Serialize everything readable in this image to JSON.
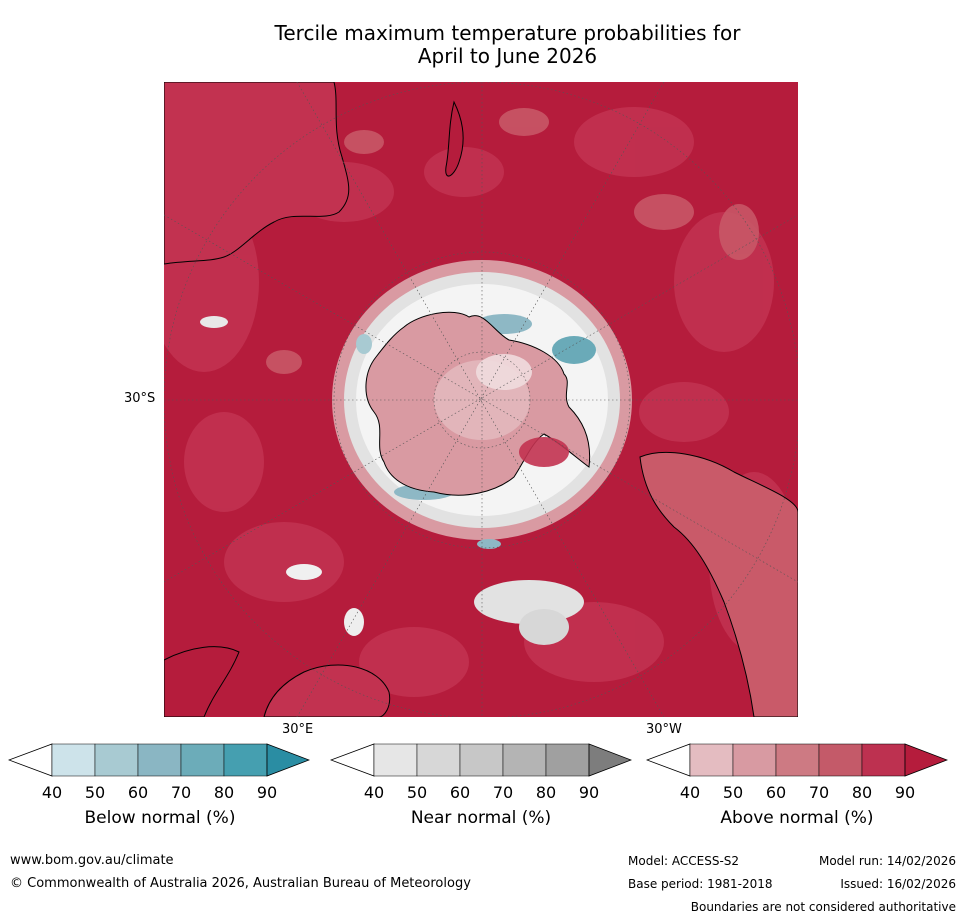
{
  "title_line1": "Tercile maximum temperature probabilities for",
  "title_line2": "April to June 2026",
  "map": {
    "projection": "south-polar-stereographic",
    "lat_label": "30°S",
    "lon_labels": [
      "30°E",
      "30°W"
    ],
    "colors": {
      "ocean_above_90": "#b51c3c",
      "above_80": "#c23250",
      "above_70": "#c95a69",
      "above_60": "#cf7b85",
      "above_50": "#d99aa2",
      "above_40": "#e4bcc1",
      "near": "#e2e2e2",
      "below_60": "#8eb8c5",
      "below_70": "#6aaab8"
    }
  },
  "colorbars": [
    {
      "label": "Below normal (%)",
      "ticks": [
        "40",
        "50",
        "60",
        "70",
        "80",
        "90"
      ],
      "colors": [
        "#ffffff",
        "#cde3ea",
        "#a8cad2",
        "#8ab6c3",
        "#6cacb9",
        "#459fb0",
        "#2a8da3"
      ]
    },
    {
      "label": "Near normal (%)",
      "ticks": [
        "40",
        "50",
        "60",
        "70",
        "80",
        "90"
      ],
      "colors": [
        "#ffffff",
        "#e6e6e6",
        "#d7d7d7",
        "#c7c7c7",
        "#b4b4b4",
        "#a0a0a0",
        "#7d7d7d"
      ]
    },
    {
      "label": "Above normal (%)",
      "ticks": [
        "40",
        "50",
        "60",
        "70",
        "80",
        "90"
      ],
      "colors": [
        "#ffffff",
        "#e4bcc1",
        "#d89aa2",
        "#cd7a83",
        "#c45a69",
        "#bd3150",
        "#b51c3c"
      ]
    }
  ],
  "footer": {
    "url": "www.bom.gov.au/climate",
    "copyright": "© Commonwealth of Australia 2026, Australian Bureau of Meteorology",
    "model": "Model: ACCESS-S2",
    "model_run": "Model run: 14/02/2026",
    "base_period": "Base period: 1981-2018",
    "issued": "Issued: 16/02/2026",
    "disclaimer": "Boundaries are not considered authoritative"
  }
}
